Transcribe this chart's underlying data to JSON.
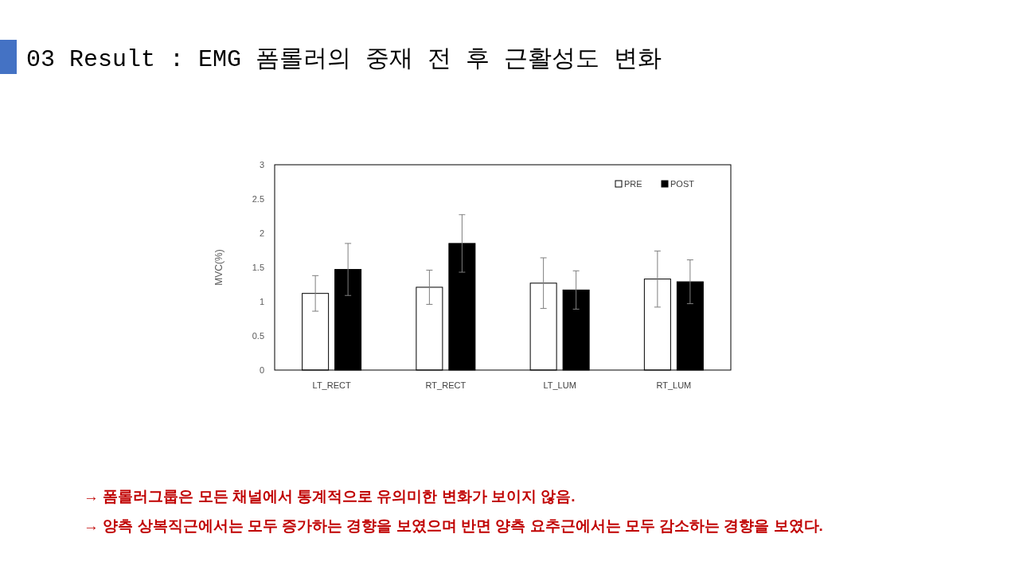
{
  "chart_data": {
    "type": "bar",
    "title": "03 Result : EMG 폼롤러의 중재 전 후 근활성도 변화",
    "ylabel": "MVC(%)",
    "categories": [
      "LT_RECT",
      "RT_RECT",
      "LT_LUM",
      "RT_LUM"
    ],
    "series": [
      {
        "name": "PRE",
        "color": "#ffffff",
        "values": [
          1.12,
          1.21,
          1.27,
          1.33
        ],
        "errors": [
          0.26,
          0.25,
          0.37,
          0.41
        ]
      },
      {
        "name": "POST",
        "color": "#000000",
        "values": [
          1.47,
          1.85,
          1.17,
          1.29
        ],
        "errors": [
          0.38,
          0.42,
          0.28,
          0.32
        ]
      }
    ],
    "ylim": [
      0,
      3
    ],
    "yticks": [
      0,
      0.5,
      1,
      1.5,
      2,
      2.5,
      3
    ],
    "grid": false,
    "legend": "top right",
    "annotations": [
      "→ 폼롤러그룹은 모든 채널에서 통계적으로 유의미한 변화가 보이지 않음.",
      "→ 양측 상복직근에서는 모두 증가하는 경향을 보였으며 반면 양측 요추근에서는 모두 감소하는 경향을 보였다."
    ]
  }
}
